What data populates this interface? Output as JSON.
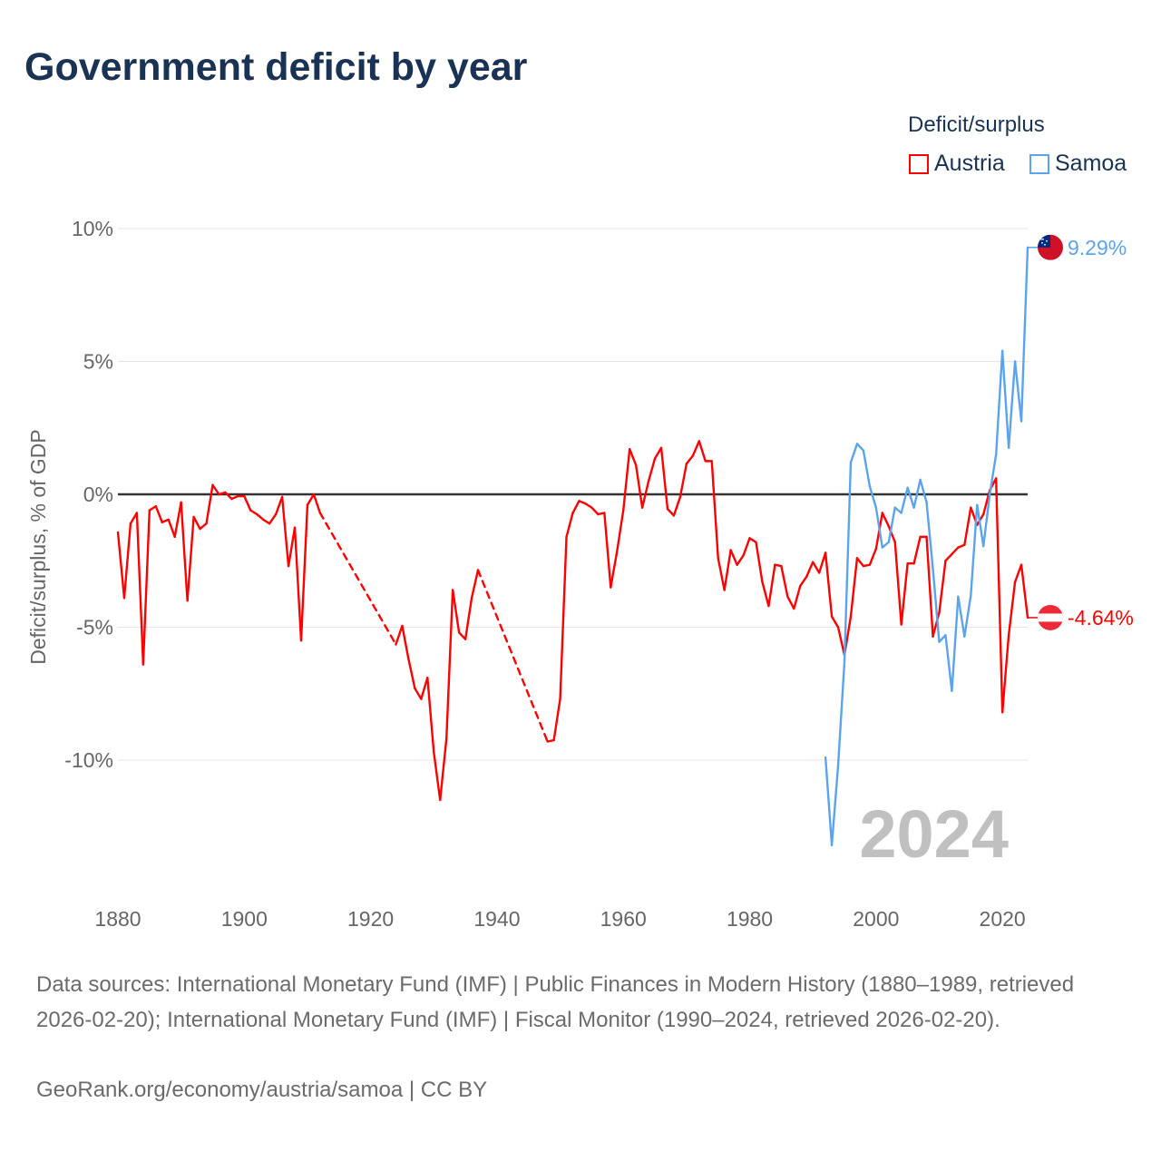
{
  "title": "Government deficit by year",
  "legend": {
    "title": "Deficit/surplus",
    "items": [
      {
        "name": "Austria",
        "color": "#ff0000"
      },
      {
        "name": "Samoa",
        "color": "#5ba4ec"
      }
    ]
  },
  "year_watermark": "2024",
  "footer": {
    "sources": "Data sources: International Monetary Fund (IMF) | Public Finances in Modern History (1880–1989, retrieved 2026-02-20); International Monetary Fund (IMF) | Fiscal Monitor (1990–2024, retrieved 2026-02-20).",
    "credit": "GeoRank.org/economy/austria/samoa | CC BY"
  },
  "chart_data": {
    "type": "line",
    "title": "Government deficit by year",
    "xlabel": "",
    "ylabel": "Deficit/surplus, % of GDP",
    "xlim": [
      1880,
      2024
    ],
    "ylim": [
      -14,
      10.5
    ],
    "xticks": [
      {
        "v": 1880,
        "label": "1880"
      },
      {
        "v": 1900,
        "label": "1900"
      },
      {
        "v": 1920,
        "label": "1920"
      },
      {
        "v": 1940,
        "label": "1940"
      },
      {
        "v": 1960,
        "label": "1960"
      },
      {
        "v": 1980,
        "label": "1980"
      },
      {
        "v": 2000,
        "label": "2000"
      },
      {
        "v": 2020,
        "label": "2020"
      }
    ],
    "yticks": [
      {
        "v": 10,
        "label": "10%"
      },
      {
        "v": 5,
        "label": "5%"
      },
      {
        "v": 0,
        "label": "0%"
      },
      {
        "v": -5,
        "label": "-5%"
      },
      {
        "v": -10,
        "label": "-10%"
      }
    ],
    "grid": true,
    "legend_position": "top-right",
    "series": [
      {
        "name": "Austria",
        "color": "#ff0000",
        "end_label": "-4.64%",
        "points": [
          [
            1880,
            -1.43
          ],
          [
            1881,
            -3.9
          ],
          [
            1882,
            -1.1
          ],
          [
            1883,
            -0.7
          ],
          [
            1884,
            -6.4
          ],
          [
            1885,
            -0.6
          ],
          [
            1886,
            -0.45
          ],
          [
            1887,
            -1.05
          ],
          [
            1888,
            -0.95
          ],
          [
            1889,
            -1.6
          ],
          [
            1890,
            -0.3
          ],
          [
            1891,
            -4.0
          ],
          [
            1892,
            -0.85
          ],
          [
            1893,
            -1.3
          ],
          [
            1894,
            -1.1
          ],
          [
            1895,
            0.35
          ],
          [
            1896,
            0.0
          ],
          [
            1897,
            0.07
          ],
          [
            1898,
            -0.17
          ],
          [
            1899,
            -0.07
          ],
          [
            1900,
            -0.07
          ],
          [
            1901,
            -0.6
          ],
          [
            1902,
            -0.75
          ],
          [
            1903,
            -0.95
          ],
          [
            1904,
            -1.1
          ],
          [
            1905,
            -0.75
          ],
          [
            1906,
            -0.1
          ],
          [
            1907,
            -2.7
          ],
          [
            1908,
            -1.25
          ],
          [
            1909,
            -5.5
          ],
          [
            1910,
            -0.4
          ],
          [
            1911,
            0.0
          ],
          [
            1912,
            -0.7
          ],
          [
            1924,
            -5.65
          ],
          [
            1925,
            -4.95
          ],
          [
            1926,
            -6.2
          ],
          [
            1927,
            -7.3
          ],
          [
            1928,
            -7.7
          ],
          [
            1929,
            -6.9
          ],
          [
            1930,
            -9.7
          ],
          [
            1931,
            -11.5
          ],
          [
            1932,
            -9.2
          ],
          [
            1933,
            -3.6
          ],
          [
            1934,
            -5.2
          ],
          [
            1935,
            -5.45
          ],
          [
            1936,
            -3.9
          ],
          [
            1937,
            -2.85
          ],
          [
            1948,
            -9.3
          ],
          [
            1949,
            -9.25
          ],
          [
            1950,
            -7.7
          ],
          [
            1951,
            -1.6
          ],
          [
            1952,
            -0.7
          ],
          [
            1953,
            -0.25
          ],
          [
            1954,
            -0.35
          ],
          [
            1955,
            -0.5
          ],
          [
            1956,
            -0.75
          ],
          [
            1957,
            -0.7
          ],
          [
            1958,
            -3.5
          ],
          [
            1959,
            -2.15
          ],
          [
            1960,
            -0.6
          ],
          [
            1961,
            1.7
          ],
          [
            1962,
            1.1
          ],
          [
            1963,
            -0.5
          ],
          [
            1964,
            0.5
          ],
          [
            1965,
            1.35
          ],
          [
            1966,
            1.75
          ],
          [
            1967,
            -0.55
          ],
          [
            1968,
            -0.8
          ],
          [
            1969,
            -0.1
          ],
          [
            1970,
            1.15
          ],
          [
            1971,
            1.45
          ],
          [
            1972,
            2.0
          ],
          [
            1973,
            1.25
          ],
          [
            1974,
            1.25
          ],
          [
            1975,
            -2.4
          ],
          [
            1976,
            -3.6
          ],
          [
            1977,
            -2.1
          ],
          [
            1978,
            -2.65
          ],
          [
            1979,
            -2.3
          ],
          [
            1980,
            -1.65
          ],
          [
            1981,
            -1.8
          ],
          [
            1982,
            -3.3
          ],
          [
            1983,
            -4.2
          ],
          [
            1984,
            -2.65
          ],
          [
            1985,
            -2.7
          ],
          [
            1986,
            -3.85
          ],
          [
            1987,
            -4.3
          ],
          [
            1988,
            -3.45
          ],
          [
            1989,
            -3.1
          ],
          [
            1990,
            -2.55
          ],
          [
            1991,
            -2.95
          ],
          [
            1992,
            -2.2
          ],
          [
            1993,
            -4.6
          ],
          [
            1994,
            -5.0
          ],
          [
            1995,
            -6.05
          ],
          [
            1996,
            -4.6
          ],
          [
            1997,
            -2.4
          ],
          [
            1998,
            -2.7
          ],
          [
            1999,
            -2.65
          ],
          [
            2000,
            -2.05
          ],
          [
            2001,
            -0.7
          ],
          [
            2002,
            -1.2
          ],
          [
            2003,
            -1.8
          ],
          [
            2004,
            -4.9
          ],
          [
            2005,
            -2.6
          ],
          [
            2006,
            -2.6
          ],
          [
            2007,
            -1.6
          ],
          [
            2008,
            -1.6
          ],
          [
            2009,
            -5.35
          ],
          [
            2010,
            -4.45
          ],
          [
            2011,
            -2.5
          ],
          [
            2012,
            -2.25
          ],
          [
            2013,
            -2.0
          ],
          [
            2014,
            -1.9
          ],
          [
            2015,
            -0.5
          ],
          [
            2016,
            -1.15
          ],
          [
            2017,
            -0.75
          ],
          [
            2018,
            0.15
          ],
          [
            2019,
            0.6
          ],
          [
            2020,
            -8.2
          ],
          [
            2021,
            -5.3
          ],
          [
            2022,
            -3.3
          ],
          [
            2023,
            -2.65
          ],
          [
            2024,
            -4.64
          ]
        ]
      },
      {
        "name": "Samoa",
        "color": "#5ba4ec",
        "end_label": "9.29%",
        "points": [
          [
            1992,
            -9.9
          ],
          [
            1993,
            -13.2
          ],
          [
            1994,
            -10.2
          ],
          [
            1995,
            -6.3
          ],
          [
            1996,
            1.2
          ],
          [
            1997,
            1.9
          ],
          [
            1998,
            1.65
          ],
          [
            1999,
            0.3
          ],
          [
            2000,
            -0.5
          ],
          [
            2001,
            -2.0
          ],
          [
            2002,
            -1.8
          ],
          [
            2003,
            -0.5
          ],
          [
            2004,
            -0.7
          ],
          [
            2005,
            0.25
          ],
          [
            2006,
            -0.5
          ],
          [
            2007,
            0.55
          ],
          [
            2008,
            -0.3
          ],
          [
            2009,
            -2.8
          ],
          [
            2010,
            -5.55
          ],
          [
            2011,
            -5.3
          ],
          [
            2012,
            -7.4
          ],
          [
            2013,
            -3.85
          ],
          [
            2014,
            -5.35
          ],
          [
            2015,
            -3.8
          ],
          [
            2016,
            -0.4
          ],
          [
            2017,
            -1.95
          ],
          [
            2018,
            0.0
          ],
          [
            2019,
            1.5
          ],
          [
            2020,
            5.4
          ],
          [
            2021,
            1.75
          ],
          [
            2022,
            5.0
          ],
          [
            2023,
            2.75
          ],
          [
            2024,
            9.29
          ]
        ]
      }
    ]
  }
}
